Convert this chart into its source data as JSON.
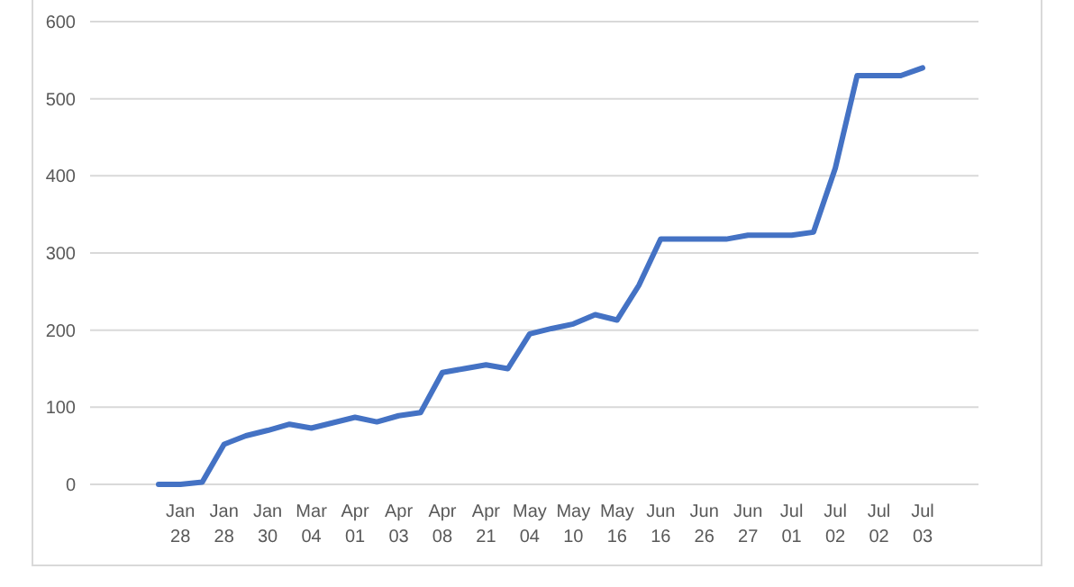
{
  "chart_data": {
    "type": "line",
    "categories": [
      null,
      "Jan 28",
      null,
      "Jan 28",
      null,
      "Jan 30",
      null,
      "Mar 04",
      null,
      "Apr 01",
      null,
      "Apr 03",
      null,
      "Apr 08",
      null,
      "Apr 21",
      null,
      "May 04",
      null,
      "May 10",
      null,
      "May 16",
      null,
      "Jun 16",
      null,
      "Jun 26",
      null,
      "Jun 27",
      null,
      "Jul 01",
      null,
      "Jul 02",
      null,
      "Jul 02",
      null,
      "Jul 03"
    ],
    "series": [
      {
        "color": "#4472c4",
        "values": [
          0,
          0,
          3,
          52,
          63,
          70,
          78,
          73,
          80,
          87,
          81,
          89,
          93,
          145,
          150,
          155,
          150,
          195,
          202,
          208,
          220,
          213,
          258,
          318,
          318,
          318,
          318,
          323,
          323,
          323,
          327,
          410,
          530,
          530,
          530,
          540
        ]
      }
    ],
    "ylim": [
      0,
      600
    ],
    "yticks": [
      0,
      100,
      200,
      300,
      400,
      500,
      600
    ],
    "grid": "y",
    "marker": "none",
    "line_style": "solid"
  }
}
